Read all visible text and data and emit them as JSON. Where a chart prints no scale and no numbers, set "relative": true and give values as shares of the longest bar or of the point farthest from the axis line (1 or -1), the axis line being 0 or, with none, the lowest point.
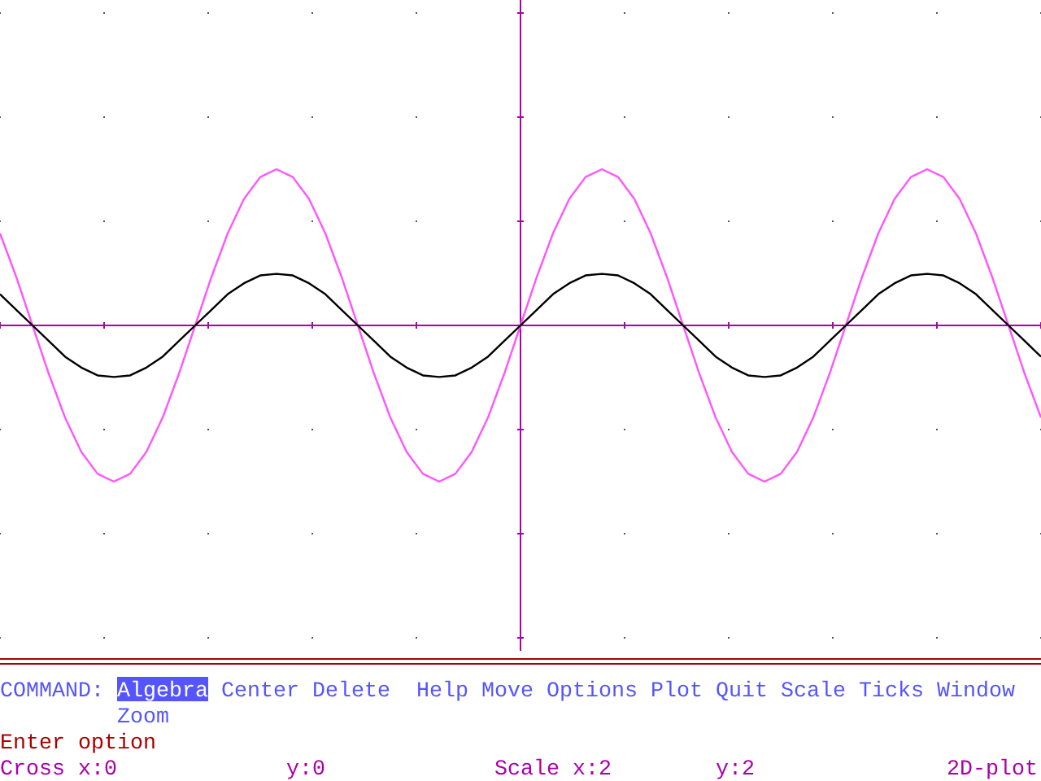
{
  "chart_data": {
    "type": "line",
    "relative": true,
    "marker": "none",
    "line_style": "solid",
    "ref_lines": [
      {
        "axis": "y",
        "value": 0,
        "color": "#aa00aa"
      }
    ],
    "categories": [
      null,
      null,
      null,
      null,
      null,
      null,
      null,
      null,
      null,
      null,
      null,
      null,
      null,
      null,
      null,
      null,
      null,
      null,
      null,
      null,
      null,
      null,
      null,
      null,
      null,
      null,
      null,
      null,
      null,
      null,
      null,
      null,
      null,
      null,
      null,
      null,
      null,
      null,
      null,
      null,
      null,
      null,
      null,
      null,
      null,
      null,
      null,
      null,
      null,
      null,
      null,
      null,
      null,
      null,
      null,
      null,
      null,
      null,
      null,
      null,
      null,
      null,
      null,
      null,
      null
    ],
    "series": [
      {
        "color": "#ff55ff",
        "values": [
          0.59,
          0.31,
          0,
          -0.31,
          -0.59,
          -0.81,
          -0.95,
          -1,
          -0.95,
          -0.81,
          -0.59,
          -0.31,
          0,
          0.31,
          0.59,
          0.81,
          0.95,
          1,
          0.95,
          0.81,
          0.59,
          0.31,
          0,
          -0.31,
          -0.59,
          -0.81,
          -0.95,
          -1,
          -0.95,
          -0.81,
          -0.59,
          -0.31,
          0,
          0.31,
          0.59,
          0.81,
          0.95,
          1,
          0.95,
          0.81,
          0.59,
          0.31,
          0,
          -0.31,
          -0.59,
          -0.81,
          -0.95,
          -1,
          -0.95,
          -0.81,
          -0.59,
          -0.31,
          0,
          0.31,
          0.59,
          0.81,
          0.95,
          1,
          0.95,
          0.81,
          0.59,
          0.31,
          0,
          -0.31,
          -0.59
        ]
      },
      {
        "color": "#000000",
        "values": [
          0.2,
          0.1,
          0,
          -0.1,
          -0.2,
          -0.27,
          -0.32,
          -0.33,
          -0.32,
          -0.27,
          -0.2,
          -0.1,
          0,
          0.1,
          0.2,
          0.27,
          0.32,
          0.33,
          0.32,
          0.27,
          0.2,
          0.1,
          0,
          -0.1,
          -0.2,
          -0.27,
          -0.32,
          -0.33,
          -0.32,
          -0.27,
          -0.2,
          -0.1,
          0,
          0.1,
          0.2,
          0.27,
          0.32,
          0.33,
          0.32,
          0.27,
          0.2,
          0.1,
          0,
          -0.1,
          -0.2,
          -0.27,
          -0.32,
          -0.33,
          -0.32,
          -0.27,
          -0.2,
          -0.1,
          0,
          0.1,
          0.2,
          0.27,
          0.32,
          0.33,
          0.32,
          0.27,
          0.2,
          0.1,
          0,
          -0.1,
          -0.2
        ]
      }
    ],
    "annotations": [
      "COMMAND:",
      "Algebra",
      "Center",
      "Delete",
      "Help",
      "Move",
      "Options",
      "Plot",
      "Quit",
      "Scale",
      "Ticks",
      "Window",
      "Zoom",
      "Enter option",
      "Cross x:0",
      "y:0",
      "Scale x:2",
      "y:2",
      "2D-plot"
    ]
  }
}
